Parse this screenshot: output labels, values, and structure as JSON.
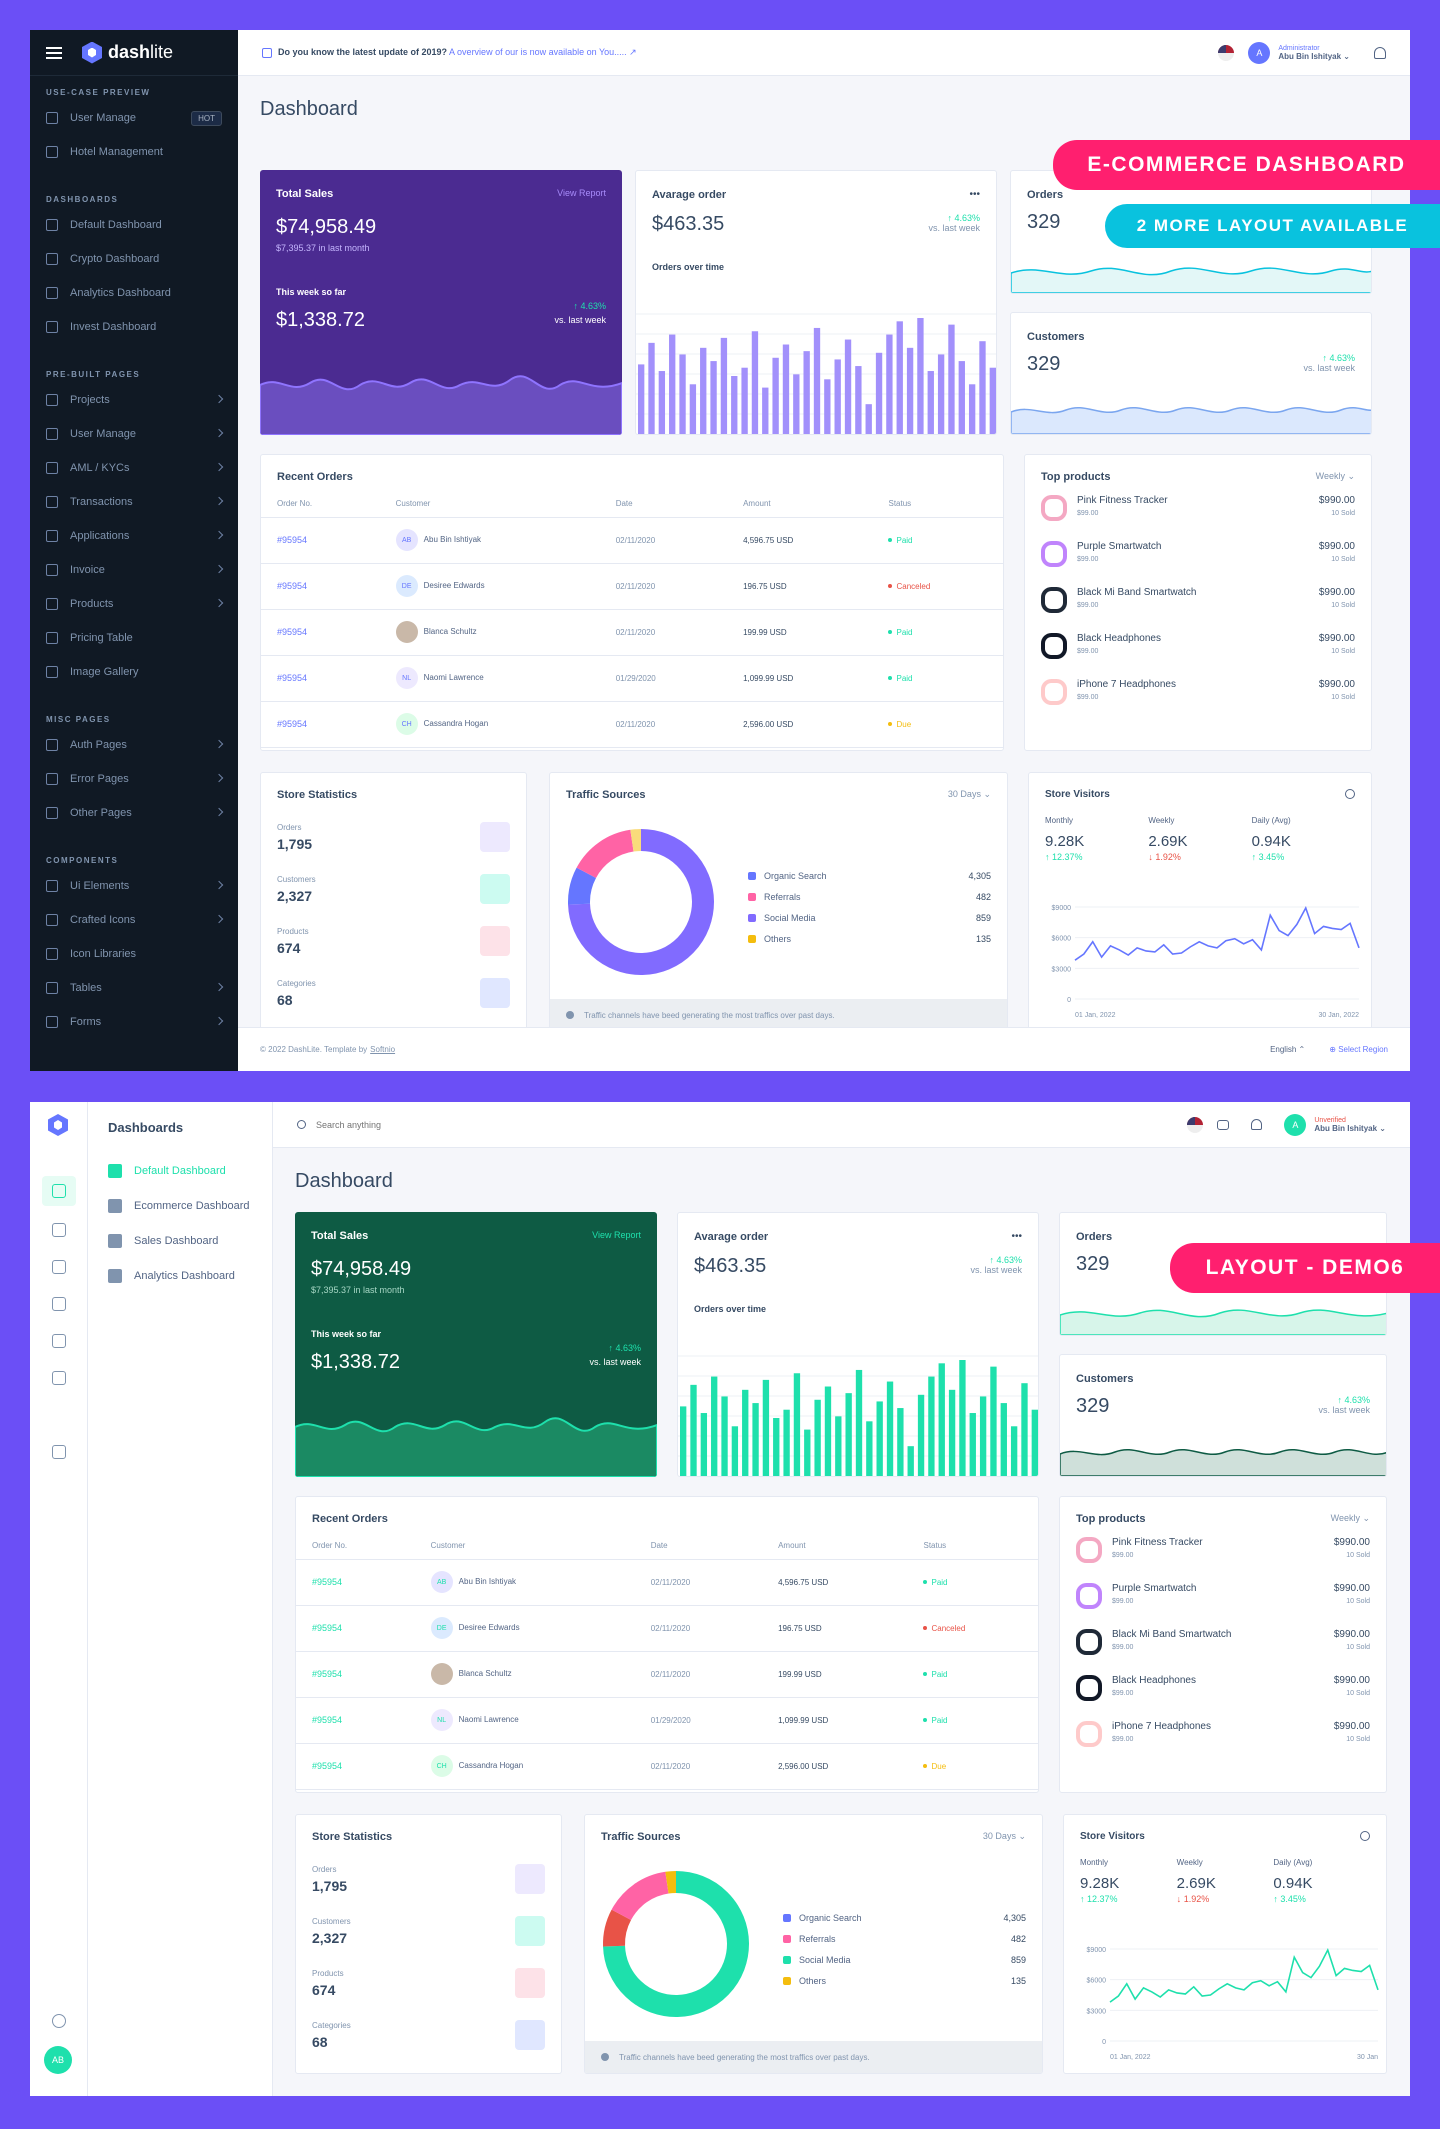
{
  "brand": {
    "name_bold": "dash",
    "name_light": "lite"
  },
  "banners": {
    "ecommerce": "E-COMMERCE DASHBOARD",
    "more": "2 MORE LAYOUT AVAILABLE",
    "demo6": "LAYOUT - DEMO6"
  },
  "colors": {
    "purple": "#6576ff",
    "green": "#1ee0ac",
    "bg": "#6b4ff6",
    "dark": "#101924",
    "pink": "#ff1f6f",
    "cyan": "#09c2de"
  },
  "sidebar": {
    "sec1": "USE-CASE PREVIEW",
    "usecase": [
      {
        "label": "User Manage",
        "badge": "HOT"
      },
      {
        "label": "Hotel Management"
      }
    ],
    "sec2": "DASHBOARDS",
    "dashboards": [
      {
        "label": "Default Dashboard"
      },
      {
        "label": "Crypto Dashboard"
      },
      {
        "label": "Analytics Dashboard"
      },
      {
        "label": "Invest Dashboard"
      }
    ],
    "sec3": "PRE-BUILT PAGES",
    "prebuilt": [
      {
        "label": "Projects",
        "sub": true
      },
      {
        "label": "User Manage",
        "sub": true
      },
      {
        "label": "AML / KYCs",
        "sub": true
      },
      {
        "label": "Transactions",
        "sub": true
      },
      {
        "label": "Applications",
        "sub": true
      },
      {
        "label": "Invoice",
        "sub": true
      },
      {
        "label": "Products",
        "sub": true
      },
      {
        "label": "Pricing Table"
      },
      {
        "label": "Image Gallery"
      }
    ],
    "sec4": "MISC PAGES",
    "misc": [
      {
        "label": "Auth Pages",
        "sub": true
      },
      {
        "label": "Error Pages",
        "sub": true
      },
      {
        "label": "Other Pages",
        "sub": true
      }
    ],
    "sec5": "COMPONENTS",
    "components": [
      {
        "label": "Ui Elements",
        "sub": true
      },
      {
        "label": "Crafted Icons",
        "sub": true
      },
      {
        "label": "Icon Libraries"
      },
      {
        "label": "Tables",
        "sub": true
      },
      {
        "label": "Forms",
        "sub": true
      }
    ]
  },
  "topbar": {
    "info_bold": "Do you know the latest update of 2019?",
    "info_link": "A overview of our is now available on You.....",
    "role": "Administrator",
    "name": "Abu Bin Ishityak",
    "unverified": "Unverified",
    "search_placeholder": "Search anything"
  },
  "page_title": "Dashboard",
  "total_sales": {
    "title": "Total Sales",
    "link": "View Report",
    "amount": "$74,958.49",
    "sub": "$7,395.37 in last month",
    "week_label": "This week so far",
    "week_amount": "$1,338.72",
    "change": "4.63%",
    "vs": "vs. last week"
  },
  "avg_order": {
    "title": "Avarage order",
    "amount": "$463.35",
    "change": "4.63%",
    "vs": "vs. last week",
    "chart_label": "Orders over time",
    "more": "•••"
  },
  "orders": {
    "title": "Orders",
    "value": "329"
  },
  "customers": {
    "title": "Customers",
    "value": "329",
    "change": "4.63%",
    "vs": "vs. last week"
  },
  "recent_orders": {
    "title": "Recent Orders",
    "headers": [
      "Order No.",
      "Customer",
      "Date",
      "Amount",
      "Status"
    ],
    "rows": [
      {
        "no": "#95954",
        "initials": "AB",
        "customer": "Abu Bin Ishtiyak",
        "date": "02/11/2020",
        "amount": "4,596.75 USD",
        "status": "Paid",
        "scolor": "#1ee0ac",
        "acolor": "#e5e4ff"
      },
      {
        "no": "#95954",
        "initials": "DE",
        "customer": "Desiree Edwards",
        "date": "02/11/2020",
        "amount": "196.75 USD",
        "status": "Canceled",
        "scolor": "#e85347",
        "acolor": "#dbeafe"
      },
      {
        "no": "#95954",
        "initials": "",
        "customer": "Blanca Schultz",
        "date": "02/11/2020",
        "amount": "199.99 USD",
        "status": "Paid",
        "scolor": "#1ee0ac",
        "acolor": "#c9b8a8"
      },
      {
        "no": "#95954",
        "initials": "NL",
        "customer": "Naomi Lawrence",
        "date": "01/29/2020",
        "amount": "1,099.99 USD",
        "status": "Paid",
        "scolor": "#1ee0ac",
        "acolor": "#ede9fe"
      },
      {
        "no": "#95954",
        "initials": "CH",
        "customer": "Cassandra Hogan",
        "date": "02/11/2020",
        "amount": "2,596.00 USD",
        "status": "Due",
        "scolor": "#f4bd0e",
        "acolor": "#dcfce7"
      }
    ]
  },
  "top_products": {
    "title": "Top products",
    "filter": "Weekly",
    "items": [
      {
        "name": "Pink Fitness Tracker",
        "price": "$99.00",
        "total": "$990.00",
        "sold": "10 Sold",
        "color": "#f4a8c3"
      },
      {
        "name": "Purple Smartwatch",
        "price": "$99.00",
        "total": "$990.00",
        "sold": "10 Sold",
        "color": "#c084fc"
      },
      {
        "name": "Black Mi Band Smartwatch",
        "price": "$99.00",
        "total": "$990.00",
        "sold": "10 Sold",
        "color": "#1f2937"
      },
      {
        "name": "Black Headphones",
        "price": "$99.00",
        "total": "$990.00",
        "sold": "10 Sold",
        "color": "#111827"
      },
      {
        "name": "iPhone 7 Headphones",
        "price": "$99.00",
        "total": "$990.00",
        "sold": "10 Sold",
        "color": "#fecaca"
      }
    ]
  },
  "store_stats": {
    "title": "Store Statistics",
    "items": [
      {
        "label": "Orders",
        "value": "1,795",
        "bg": "#ede9fe"
      },
      {
        "label": "Customers",
        "value": "2,327",
        "bg": "#ccfbf1"
      },
      {
        "label": "Products",
        "value": "674",
        "bg": "#fde2e8"
      },
      {
        "label": "Categories",
        "value": "68",
        "bg": "#e0e7ff"
      }
    ]
  },
  "traffic": {
    "title": "Traffic Sources",
    "filter": "30 Days",
    "note": "Traffic channels have beed generating the most traffics over past days.",
    "items": [
      {
        "label": "Organic Search",
        "value": "4,305"
      },
      {
        "label": "Referrals",
        "value": "482"
      },
      {
        "label": "Social Media",
        "value": "859"
      },
      {
        "label": "Others",
        "value": "135"
      }
    ]
  },
  "visitors": {
    "title": "Store Visitors",
    "cols": [
      {
        "label": "Monthly",
        "value": "9.28K",
        "change": "12.37%",
        "dir": "up"
      },
      {
        "label": "Weekly",
        "value": "2.69K",
        "change": "1.92%",
        "dir": "down"
      },
      {
        "label": "Daily (Avg)",
        "value": "0.94K",
        "change": "3.45%",
        "dir": "up"
      }
    ],
    "yticks": [
      "$9000",
      "$6000",
      "$3000",
      "0"
    ],
    "xstart": "01 Jan, 2022",
    "xend": "30 Jan, 2022",
    "xend2": "30 Jan"
  },
  "footer": {
    "copy": "© 2022 DashLite. Template by ",
    "copy_link": "Softnio",
    "lang": "English",
    "region": "Select Region"
  },
  "layout2": {
    "sidebar_title": "Dashboards",
    "menu": [
      {
        "label": "Default Dashboard"
      },
      {
        "label": "Ecommerce Dashboard"
      },
      {
        "label": "Sales Dashboard"
      },
      {
        "label": "Analytics Dashboard"
      }
    ],
    "user_initials": "AB",
    "avatar_initial": "A"
  },
  "chart_data": [
    {
      "type": "bar",
      "title": "Orders over time",
      "values": [
        42,
        55,
        38,
        60,
        48,
        30,
        52,
        44,
        58,
        35,
        40,
        62,
        28,
        46,
        54,
        36,
        50,
        64,
        33,
        45,
        57,
        41,
        18,
        49,
        60,
        68,
        52,
        70,
        38,
        48,
        66,
        44,
        30,
        56,
        40
      ]
    },
    {
      "type": "pie",
      "title": "Traffic Sources",
      "categories": [
        "Organic Search",
        "Referrals",
        "Social Media",
        "Others"
      ],
      "values": [
        4305,
        482,
        859,
        135
      ]
    },
    {
      "type": "line",
      "title": "Store Visitors",
      "ylim": [
        0,
        9000
      ],
      "y": [
        3800,
        4400,
        5600,
        4100,
        5200,
        4800,
        4300,
        5000,
        4700,
        4600,
        5300,
        4400,
        4500,
        5100,
        5600,
        5200,
        5000,
        5700,
        5900,
        5400,
        5800,
        4800,
        8200,
        6700,
        6200,
        7300,
        8900,
        6400,
        7100,
        6900,
        6800,
        7400,
        5000
      ]
    }
  ]
}
